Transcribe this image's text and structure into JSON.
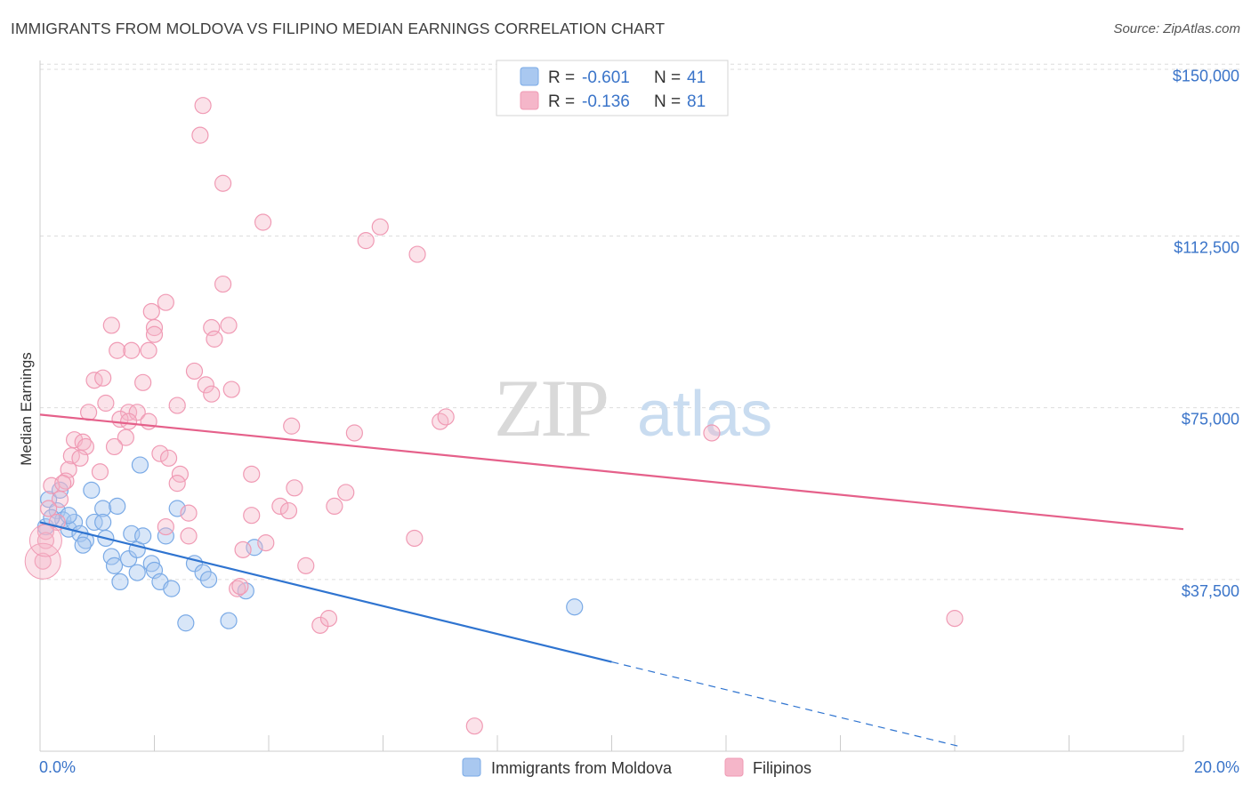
{
  "header": {
    "title": "IMMIGRANTS FROM MOLDOVA VS FILIPINO MEDIAN EARNINGS CORRELATION CHART",
    "source": "Source: ZipAtlas.com"
  },
  "watermark": {
    "zip": "ZIP",
    "atlas": "atlas"
  },
  "legend_box": {
    "r_label": "R =",
    "n_label": "N =",
    "rows": [
      {
        "r": "-0.601",
        "n": "41",
        "color": "#a9c8f0"
      },
      {
        "r": "-0.136",
        "n": "81",
        "color": "#f5b6c9"
      }
    ]
  },
  "bottom_legend": [
    {
      "label": "Immigrants from Moldova",
      "color": "#a9c8f0"
    },
    {
      "label": "Filipinos",
      "color": "#f5b6c9"
    }
  ],
  "chart_data": {
    "type": "scatter",
    "title": "IMMIGRANTS FROM MOLDOVA VS FILIPINO MEDIAN EARNINGS CORRELATION CHART",
    "xlabel": "",
    "ylabel": "Median Earnings",
    "xlim": [
      0,
      20
    ],
    "ylim": [
      0,
      152000
    ],
    "x_tick_labels": [
      "0.0%",
      "20.0%"
    ],
    "y_ticks": [
      37500,
      75000,
      112500,
      150000
    ],
    "y_tick_labels": [
      "$37,500",
      "$75,000",
      "$112,500",
      "$150,000"
    ],
    "grid": true,
    "legend_position": "top-center",
    "colors": {
      "moldova": "#7aaae6",
      "moldova_line": "#2f74d0",
      "filipinos": "#f09ab4",
      "filipinos_line": "#e5608a"
    },
    "series": [
      {
        "name": "Immigrants from Moldova",
        "key": "moldova",
        "points": [
          [
            0.1,
            49000
          ],
          [
            0.15,
            55000
          ],
          [
            0.3,
            52500
          ],
          [
            0.35,
            57000
          ],
          [
            0.4,
            50500
          ],
          [
            0.5,
            48500
          ],
          [
            0.6,
            50000
          ],
          [
            0.7,
            47500
          ],
          [
            0.8,
            46000
          ],
          [
            0.75,
            45000
          ],
          [
            0.9,
            57000
          ],
          [
            0.95,
            50000
          ],
          [
            1.1,
            53000
          ],
          [
            1.1,
            50000
          ],
          [
            1.15,
            46500
          ],
          [
            1.25,
            42500
          ],
          [
            1.3,
            40500
          ],
          [
            1.35,
            53500
          ],
          [
            1.4,
            37000
          ],
          [
            1.55,
            42000
          ],
          [
            1.6,
            47500
          ],
          [
            1.7,
            44000
          ],
          [
            1.7,
            39000
          ],
          [
            1.8,
            47000
          ],
          [
            1.75,
            62500
          ],
          [
            1.95,
            41000
          ],
          [
            2.0,
            39500
          ],
          [
            2.1,
            37000
          ],
          [
            2.2,
            47000
          ],
          [
            2.3,
            35500
          ],
          [
            2.4,
            53000
          ],
          [
            2.55,
            28000
          ],
          [
            2.7,
            41000
          ],
          [
            2.85,
            39000
          ],
          [
            2.95,
            37500
          ],
          [
            3.3,
            28500
          ],
          [
            3.6,
            35000
          ],
          [
            3.75,
            44500
          ],
          [
            9.35,
            31500
          ],
          [
            0.2,
            51000
          ],
          [
            0.5,
            51500
          ]
        ]
      },
      {
        "name": "Filipinos",
        "key": "filipinos",
        "points": [
          [
            2.85,
            141000
          ],
          [
            2.8,
            134500
          ],
          [
            3.2,
            124000
          ],
          [
            3.9,
            115500
          ],
          [
            5.95,
            114500
          ],
          [
            5.7,
            111500
          ],
          [
            6.6,
            108500
          ],
          [
            3.2,
            102000
          ],
          [
            2.2,
            98000
          ],
          [
            1.95,
            96000
          ],
          [
            1.25,
            93000
          ],
          [
            2.0,
            92500
          ],
          [
            2.0,
            91000
          ],
          [
            3.0,
            92500
          ],
          [
            3.3,
            93000
          ],
          [
            3.05,
            90000
          ],
          [
            1.35,
            87500
          ],
          [
            1.6,
            87500
          ],
          [
            1.9,
            87500
          ],
          [
            2.7,
            83000
          ],
          [
            0.95,
            81000
          ],
          [
            1.1,
            81500
          ],
          [
            1.8,
            80500
          ],
          [
            2.9,
            80000
          ],
          [
            3.35,
            79000
          ],
          [
            3.0,
            78000
          ],
          [
            1.15,
            76000
          ],
          [
            2.4,
            75500
          ],
          [
            0.85,
            74000
          ],
          [
            1.55,
            74000
          ],
          [
            1.7,
            74000
          ],
          [
            1.4,
            72500
          ],
          [
            1.55,
            72000
          ],
          [
            1.9,
            72000
          ],
          [
            4.4,
            71000
          ],
          [
            5.5,
            69500
          ],
          [
            7.0,
            72000
          ],
          [
            7.1,
            73000
          ],
          [
            11.75,
            69500
          ],
          [
            0.6,
            68000
          ],
          [
            0.75,
            67500
          ],
          [
            0.8,
            66500
          ],
          [
            1.5,
            68500
          ],
          [
            1.3,
            66500
          ],
          [
            2.1,
            65000
          ],
          [
            2.25,
            64000
          ],
          [
            0.55,
            64500
          ],
          [
            0.7,
            64000
          ],
          [
            0.5,
            61500
          ],
          [
            0.45,
            59000
          ],
          [
            1.05,
            61000
          ],
          [
            2.45,
            60500
          ],
          [
            3.7,
            60500
          ],
          [
            0.2,
            58000
          ],
          [
            0.4,
            58500
          ],
          [
            0.35,
            55000
          ],
          [
            2.4,
            58500
          ],
          [
            4.45,
            57500
          ],
          [
            5.35,
            56500
          ],
          [
            0.15,
            53000
          ],
          [
            0.3,
            50000
          ],
          [
            0.1,
            48000
          ],
          [
            2.6,
            52000
          ],
          [
            3.7,
            51500
          ],
          [
            4.2,
            53500
          ],
          [
            4.35,
            52500
          ],
          [
            5.15,
            53500
          ],
          [
            2.2,
            49000
          ],
          [
            2.6,
            47000
          ],
          [
            3.55,
            44000
          ],
          [
            3.95,
            45500
          ],
          [
            6.55,
            46500
          ],
          [
            4.65,
            40500
          ],
          [
            3.45,
            35500
          ],
          [
            3.5,
            36000
          ],
          [
            4.9,
            27500
          ],
          [
            5.05,
            29000
          ],
          [
            16.0,
            29000
          ],
          [
            7.6,
            5500
          ],
          [
            0.05,
            41500
          ],
          [
            0.1,
            46000
          ]
        ]
      }
    ],
    "trend_lines": [
      {
        "series": "moldova",
        "x_solid": [
          0,
          10
        ],
        "y_solid": [
          50000,
          19500
        ],
        "x_dashed": [
          10,
          16.1
        ],
        "y_dashed": [
          19500,
          1000
        ]
      },
      {
        "series": "filipinos",
        "x": [
          0,
          20
        ],
        "y": [
          73500,
          48500
        ]
      }
    ]
  }
}
